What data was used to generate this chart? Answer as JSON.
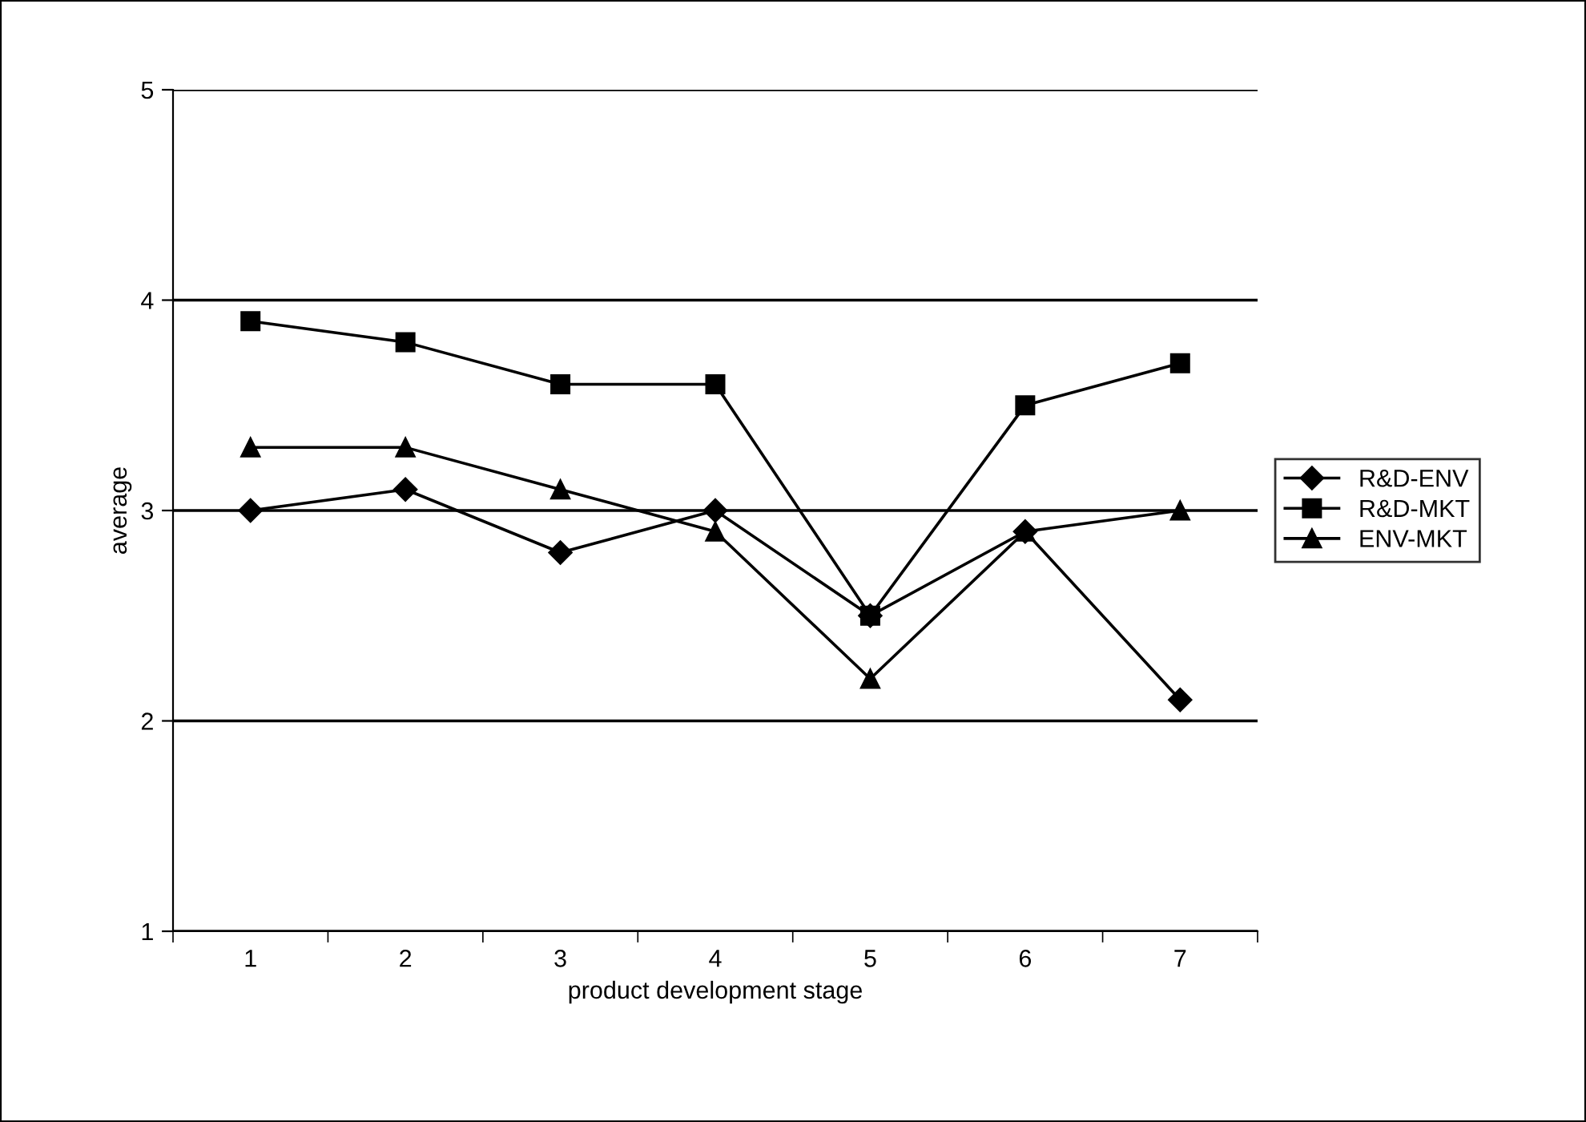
{
  "chart_data": {
    "type": "line",
    "xlabel": "product development stage",
    "ylabel": "average",
    "categories": [
      "1",
      "2",
      "3",
      "4",
      "5",
      "6",
      "7"
    ],
    "series": [
      {
        "name": "R&D-ENV",
        "color": "#000000",
        "marker": "diamond",
        "values": [
          3.0,
          3.1,
          2.8,
          3.0,
          2.5,
          2.9,
          2.1
        ]
      },
      {
        "name": "R&D-MKT",
        "color": "#000000",
        "marker": "square",
        "values": [
          3.9,
          3.8,
          3.6,
          3.6,
          2.5,
          3.5,
          3.7
        ]
      },
      {
        "name": "ENV-MKT",
        "color": "#000000",
        "marker": "triangle",
        "values": [
          3.3,
          3.3,
          3.1,
          2.9,
          2.2,
          2.9,
          3.0
        ]
      }
    ],
    "ylim": [
      1,
      5
    ],
    "yticks": [
      1,
      2,
      3,
      4,
      5
    ],
    "grid": "y",
    "legend": "right",
    "line_style": "solid"
  }
}
